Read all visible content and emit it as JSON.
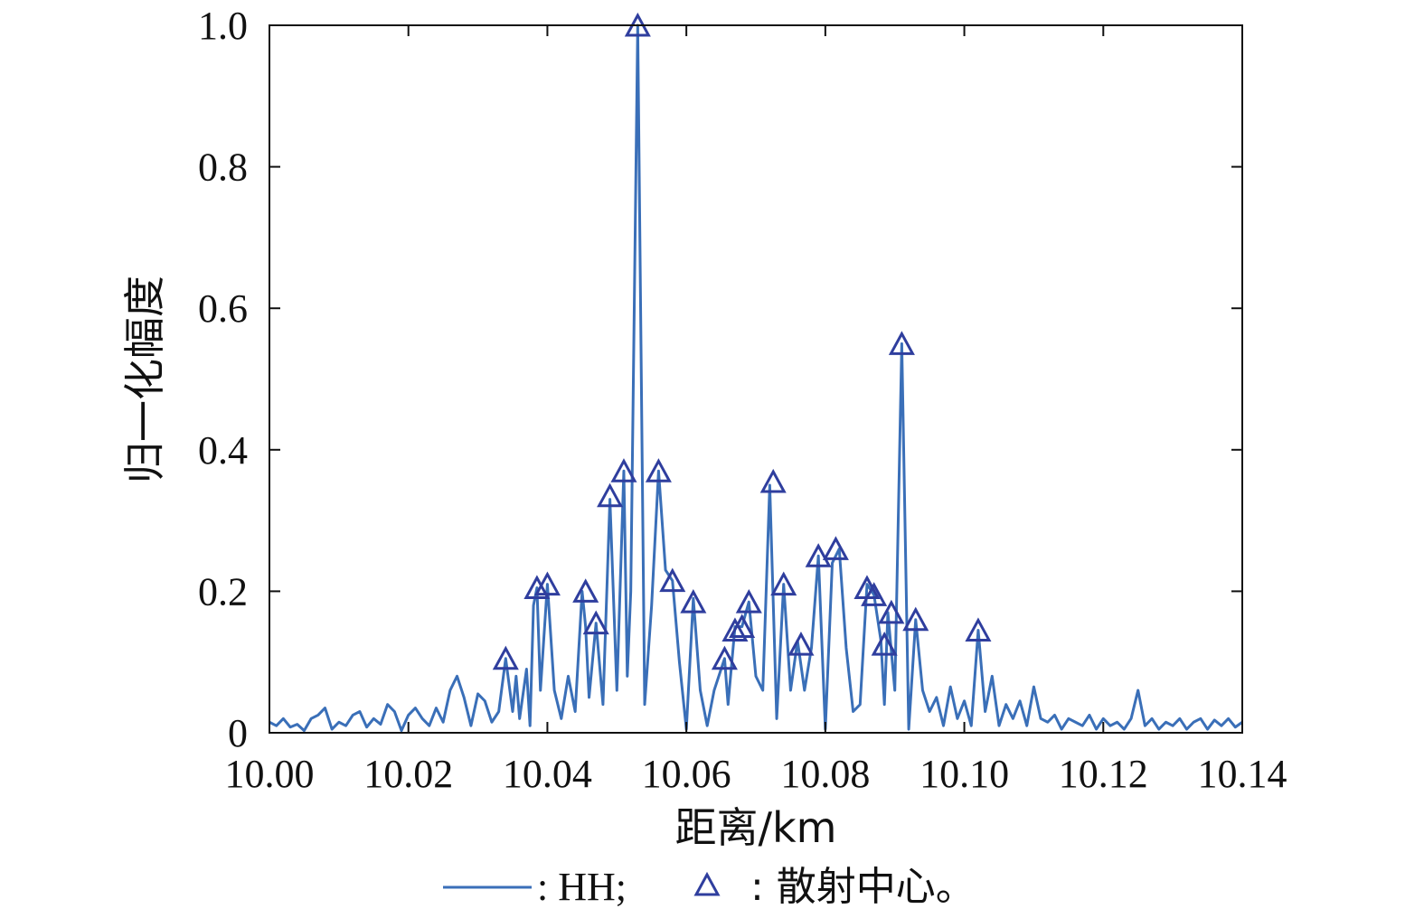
{
  "chart_data": {
    "type": "line",
    "xlabel": "距离/km",
    "ylabel": "归一化幅度",
    "xlim": [
      10.0,
      10.14
    ],
    "ylim": [
      0,
      1.0
    ],
    "x_ticks": [
      "10.00",
      "10.02",
      "10.04",
      "10.06",
      "10.08",
      "10.10",
      "10.12",
      "10.14"
    ],
    "y_ticks": [
      "0",
      "0.2",
      "0.4",
      "0.6",
      "0.8",
      "1.0"
    ],
    "grid": false,
    "legend": {
      "placement": "bottom",
      "line_label": ": HH;",
      "marker_label": ": 散射中心。"
    },
    "colors": {
      "line": "#3a6fb8",
      "marker": "#2f3e9e"
    },
    "series": [
      {
        "type": "line",
        "points": [
          [
            10.0,
            0.015
          ],
          [
            10.001,
            0.01
          ],
          [
            10.002,
            0.02
          ],
          [
            10.003,
            0.008
          ],
          [
            10.004,
            0.012
          ],
          [
            10.005,
            0.003
          ],
          [
            10.006,
            0.02
          ],
          [
            10.007,
            0.025
          ],
          [
            10.008,
            0.035
          ],
          [
            10.009,
            0.005
          ],
          [
            10.01,
            0.015
          ],
          [
            10.011,
            0.01
          ],
          [
            10.012,
            0.025
          ],
          [
            10.013,
            0.03
          ],
          [
            10.014,
            0.008
          ],
          [
            10.015,
            0.02
          ],
          [
            10.016,
            0.012
          ],
          [
            10.017,
            0.04
          ],
          [
            10.018,
            0.03
          ],
          [
            10.019,
            0.003
          ],
          [
            10.02,
            0.025
          ],
          [
            10.021,
            0.035
          ],
          [
            10.022,
            0.02
          ],
          [
            10.023,
            0.01
          ],
          [
            10.024,
            0.035
          ],
          [
            10.025,
            0.015
          ],
          [
            10.026,
            0.06
          ],
          [
            10.027,
            0.08
          ],
          [
            10.028,
            0.05
          ],
          [
            10.029,
            0.01
          ],
          [
            10.03,
            0.055
          ],
          [
            10.031,
            0.045
          ],
          [
            10.032,
            0.015
          ],
          [
            10.033,
            0.03
          ],
          [
            10.034,
            0.105
          ],
          [
            10.035,
            0.03
          ],
          [
            10.0355,
            0.08
          ],
          [
            10.036,
            0.02
          ],
          [
            10.037,
            0.09
          ],
          [
            10.0375,
            0.01
          ],
          [
            10.038,
            0.18
          ],
          [
            10.0385,
            0.205
          ],
          [
            10.039,
            0.06
          ],
          [
            10.04,
            0.21
          ],
          [
            10.041,
            0.06
          ],
          [
            10.042,
            0.02
          ],
          [
            10.043,
            0.08
          ],
          [
            10.044,
            0.03
          ],
          [
            10.045,
            0.2
          ],
          [
            10.0455,
            0.15
          ],
          [
            10.046,
            0.05
          ],
          [
            10.047,
            0.155
          ],
          [
            10.048,
            0.04
          ],
          [
            10.049,
            0.33
          ],
          [
            10.05,
            0.06
          ],
          [
            10.051,
            0.37
          ],
          [
            10.0515,
            0.08
          ],
          [
            10.052,
            0.2
          ],
          [
            10.053,
            1.0
          ],
          [
            10.054,
            0.04
          ],
          [
            10.055,
            0.18
          ],
          [
            10.056,
            0.37
          ],
          [
            10.057,
            0.23
          ],
          [
            10.058,
            0.215
          ],
          [
            10.059,
            0.1
          ],
          [
            10.06,
            0.005
          ],
          [
            10.061,
            0.19
          ],
          [
            10.062,
            0.06
          ],
          [
            10.063,
            0.01
          ],
          [
            10.064,
            0.06
          ],
          [
            10.0655,
            0.105
          ],
          [
            10.066,
            0.04
          ],
          [
            10.067,
            0.15
          ],
          [
            10.068,
            0.15
          ],
          [
            10.069,
            0.185
          ],
          [
            10.07,
            0.08
          ],
          [
            10.071,
            0.06
          ],
          [
            10.072,
            0.35
          ],
          [
            10.073,
            0.02
          ],
          [
            10.074,
            0.21
          ],
          [
            10.075,
            0.06
          ],
          [
            10.076,
            0.13
          ],
          [
            10.077,
            0.06
          ],
          [
            10.078,
            0.12
          ],
          [
            10.079,
            0.25
          ],
          [
            10.08,
            0.005
          ],
          [
            10.081,
            0.24
          ],
          [
            10.082,
            0.26
          ],
          [
            10.083,
            0.12
          ],
          [
            10.084,
            0.03
          ],
          [
            10.085,
            0.04
          ],
          [
            10.086,
            0.21
          ],
          [
            10.087,
            0.195
          ],
          [
            10.088,
            0.13
          ],
          [
            10.0885,
            0.04
          ],
          [
            10.089,
            0.17
          ],
          [
            10.09,
            0.06
          ],
          [
            10.091,
            0.55
          ],
          [
            10.092,
            0.005
          ],
          [
            10.093,
            0.16
          ],
          [
            10.094,
            0.06
          ],
          [
            10.095,
            0.03
          ],
          [
            10.096,
            0.05
          ],
          [
            10.097,
            0.01
          ],
          [
            10.098,
            0.065
          ],
          [
            10.099,
            0.02
          ],
          [
            10.1,
            0.045
          ],
          [
            10.101,
            0.01
          ],
          [
            10.102,
            0.145
          ],
          [
            10.103,
            0.03
          ],
          [
            10.104,
            0.08
          ],
          [
            10.105,
            0.01
          ],
          [
            10.106,
            0.04
          ],
          [
            10.107,
            0.02
          ],
          [
            10.108,
            0.045
          ],
          [
            10.109,
            0.01
          ],
          [
            10.11,
            0.065
          ],
          [
            10.111,
            0.02
          ],
          [
            10.112,
            0.015
          ],
          [
            10.113,
            0.025
          ],
          [
            10.114,
            0.005
          ],
          [
            10.115,
            0.02
          ],
          [
            10.116,
            0.015
          ],
          [
            10.117,
            0.01
          ],
          [
            10.118,
            0.025
          ],
          [
            10.119,
            0.005
          ],
          [
            10.12,
            0.02
          ],
          [
            10.121,
            0.01
          ],
          [
            10.122,
            0.015
          ],
          [
            10.123,
            0.005
          ],
          [
            10.124,
            0.02
          ],
          [
            10.125,
            0.06
          ],
          [
            10.126,
            0.01
          ],
          [
            10.127,
            0.02
          ],
          [
            10.128,
            0.005
          ],
          [
            10.129,
            0.015
          ],
          [
            10.13,
            0.01
          ],
          [
            10.131,
            0.02
          ],
          [
            10.132,
            0.005
          ],
          [
            10.133,
            0.015
          ],
          [
            10.134,
            0.02
          ],
          [
            10.135,
            0.005
          ],
          [
            10.136,
            0.018
          ],
          [
            10.137,
            0.01
          ],
          [
            10.138,
            0.02
          ],
          [
            10.139,
            0.008
          ],
          [
            10.14,
            0.015
          ]
        ]
      },
      {
        "type": "scatter",
        "marker": "triangle",
        "points": [
          [
            10.034,
            0.105
          ],
          [
            10.0385,
            0.205
          ],
          [
            10.04,
            0.21
          ],
          [
            10.0455,
            0.2
          ],
          [
            10.047,
            0.155
          ],
          [
            10.049,
            0.335
          ],
          [
            10.051,
            0.37
          ],
          [
            10.053,
            1.0
          ],
          [
            10.056,
            0.37
          ],
          [
            10.058,
            0.215
          ],
          [
            10.061,
            0.185
          ],
          [
            10.0655,
            0.105
          ],
          [
            10.067,
            0.145
          ],
          [
            10.068,
            0.15
          ],
          [
            10.069,
            0.185
          ],
          [
            10.0725,
            0.355
          ],
          [
            10.074,
            0.21
          ],
          [
            10.0765,
            0.125
          ],
          [
            10.079,
            0.25
          ],
          [
            10.0815,
            0.26
          ],
          [
            10.086,
            0.205
          ],
          [
            10.087,
            0.195
          ],
          [
            10.0885,
            0.125
          ],
          [
            10.0895,
            0.17
          ],
          [
            10.091,
            0.55
          ],
          [
            10.093,
            0.16
          ],
          [
            10.102,
            0.145
          ]
        ]
      }
    ]
  }
}
